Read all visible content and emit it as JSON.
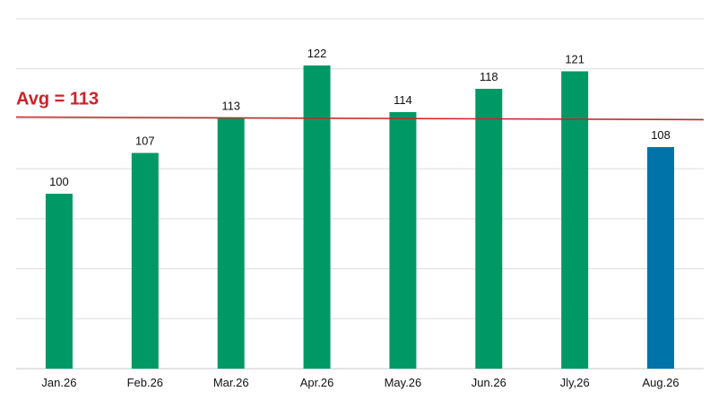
{
  "chart_data": {
    "type": "bar",
    "categories": [
      "Jan.26",
      "Feb.26",
      "Mar.26",
      "Apr.26",
      "May.26",
      "Jun.26",
      "Jly,26",
      "Aug.26"
    ],
    "values": [
      100,
      107,
      113,
      122,
      114,
      118,
      121,
      108
    ],
    "data_labels": [
      "100",
      "107",
      "113",
      "122",
      "114",
      "118",
      "121",
      "108"
    ],
    "bar_colors": [
      "#009966",
      "#009966",
      "#009966",
      "#009966",
      "#009966",
      "#009966",
      "#009966",
      "#0073a8"
    ],
    "average": {
      "value": 113,
      "label": "Avg = 113",
      "color": "#cc2229"
    },
    "ylim": [
      70,
      130
    ],
    "grid": true,
    "title": "",
    "xlabel": "",
    "ylabel": ""
  }
}
